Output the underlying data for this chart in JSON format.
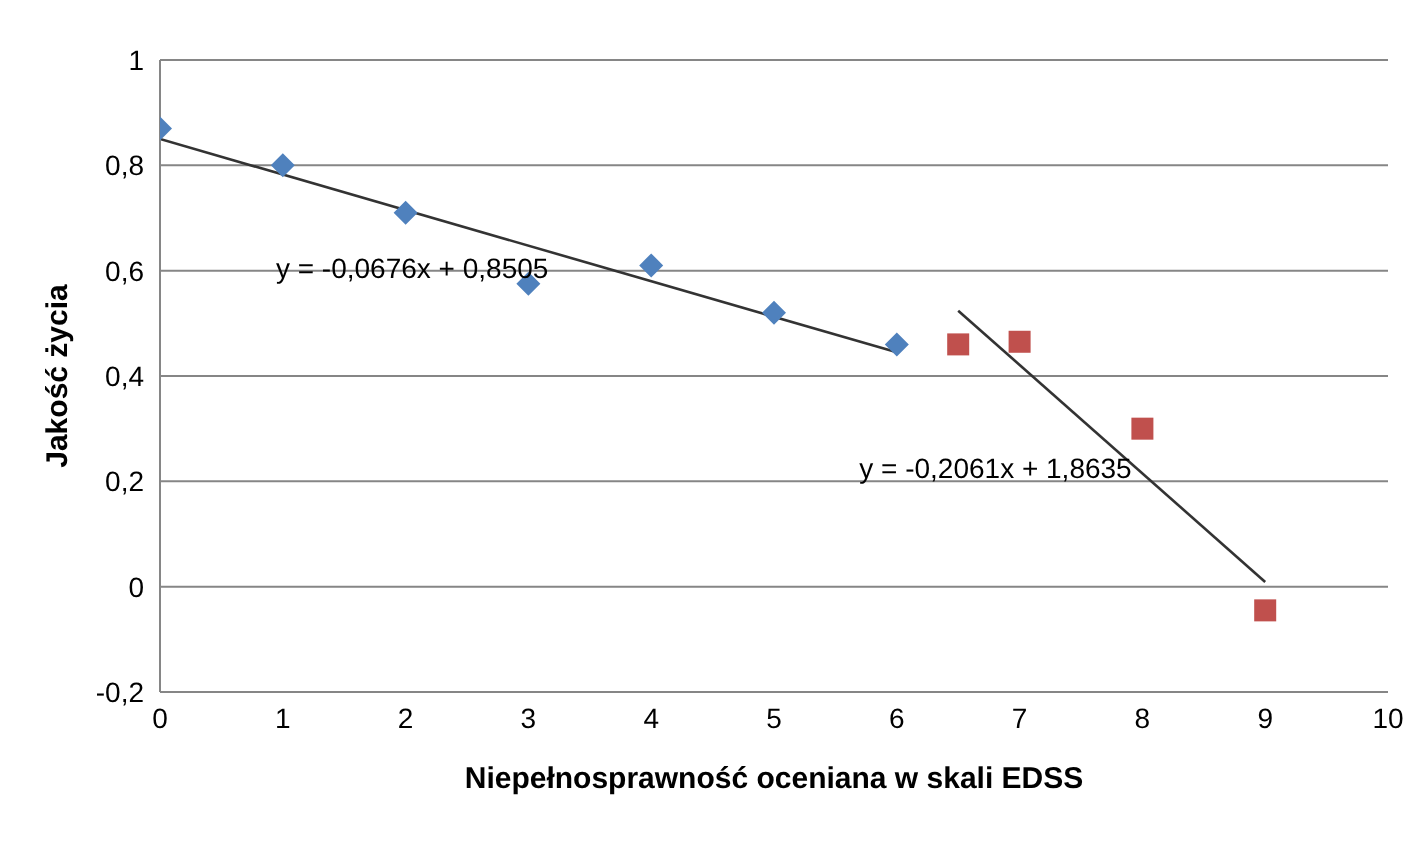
{
  "chart_data": {
    "type": "scatter",
    "xlabel": "Niepełnosprawność oceniana w skali EDSS",
    "ylabel": "Jakość życia",
    "xlim": [
      0,
      10
    ],
    "xticks": [
      0,
      1,
      2,
      3,
      4,
      5,
      6,
      7,
      8,
      9,
      10
    ],
    "ylim": [
      -0.2,
      1
    ],
    "yticks": [
      {
        "value": -0.2,
        "label": "-0,2"
      },
      {
        "value": 0,
        "label": "0"
      },
      {
        "value": 0.2,
        "label": "0,2"
      },
      {
        "value": 0.4,
        "label": "0,4"
      },
      {
        "value": 0.6,
        "label": "0,6"
      },
      {
        "value": 0.8,
        "label": "0,8"
      },
      {
        "value": 1,
        "label": "1"
      }
    ],
    "grid": "y",
    "legend": false,
    "series": [
      {
        "color": "#4f81bd",
        "marker": "diamond",
        "x": [
          0,
          1,
          2,
          3,
          4,
          5,
          6
        ],
        "values": [
          0.87,
          0.8,
          0.71,
          0.575,
          0.61,
          0.52,
          0.46
        ]
      },
      {
        "color": "#c0504d",
        "marker": "square",
        "x": [
          6.5,
          7,
          8,
          9
        ],
        "values": [
          0.46,
          0.465,
          0.3,
          -0.045
        ]
      },
      {
        "type": "line",
        "color": "#333333",
        "marker": "none",
        "x": [
          0,
          6
        ],
        "values": [
          0.85,
          0.445
        ]
      },
      {
        "type": "line",
        "color": "#333333",
        "marker": "none",
        "x": [
          6.5,
          9
        ],
        "values": [
          0.524,
          0.009
        ]
      }
    ],
    "annotations": [
      "y = -0,0676x + 0,8505",
      "y = -0,2061x + 1,8635"
    ]
  }
}
